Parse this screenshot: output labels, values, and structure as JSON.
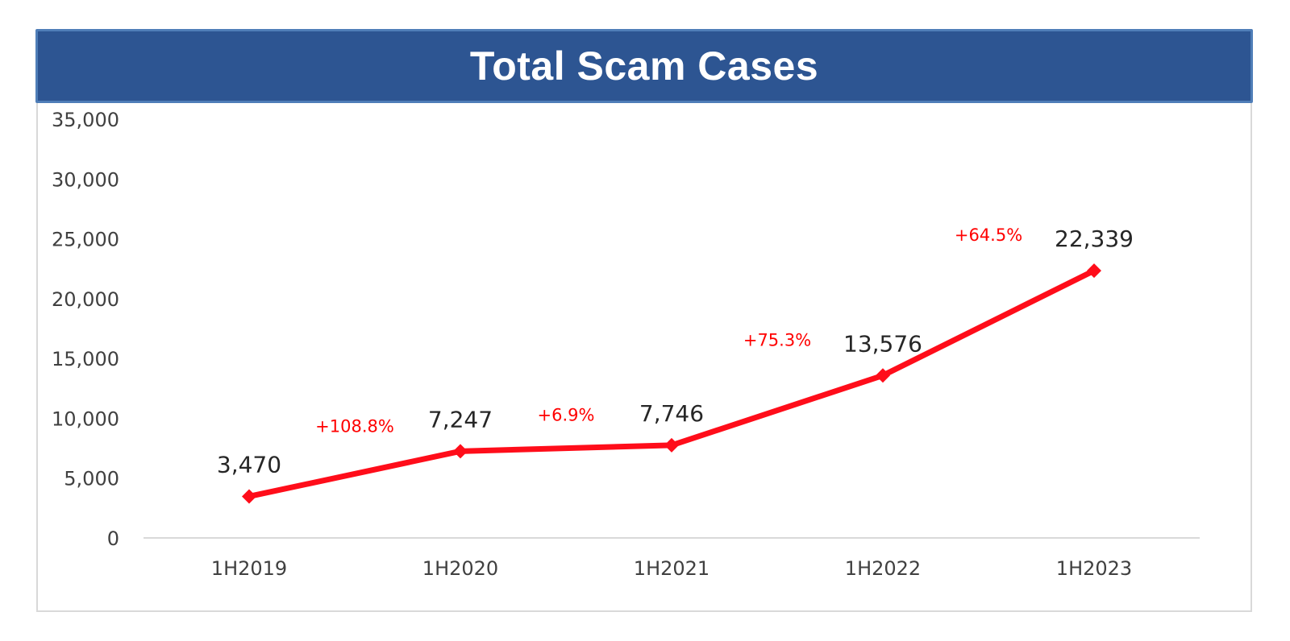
{
  "chart_data": {
    "type": "line",
    "title": "Total Scam Cases",
    "categories": [
      "1H2019",
      "1H2020",
      "1H2021",
      "1H2022",
      "1H2023"
    ],
    "series": [
      {
        "values": [
          3470,
          7247,
          7746,
          13576,
          22339
        ],
        "data_labels": [
          "3,470",
          "7,247",
          "7,746",
          "13,576",
          "22,339"
        ],
        "color": "#ff0d1a",
        "marker": "diamond"
      }
    ],
    "growth_labels": [
      "+108.8%",
      "+6.9%",
      "+75.3%",
      "+64.5%"
    ],
    "ylim": [
      0,
      35000
    ],
    "y_ticks": [
      0,
      5000,
      10000,
      15000,
      20000,
      25000,
      30000,
      35000
    ],
    "y_tick_labels": [
      "0",
      "5,000",
      "10,000",
      "15,000",
      "20,000",
      "25,000",
      "30,000",
      "35,000"
    ],
    "xlabel": "",
    "ylabel": "",
    "grid": false,
    "legend": "none",
    "colors": {
      "title_banner": "#2d5592",
      "title_border": "#4f7eb8",
      "line": "#ff0d1a",
      "growth_text": "#ff0000",
      "axis": "#d9d9d9"
    }
  }
}
